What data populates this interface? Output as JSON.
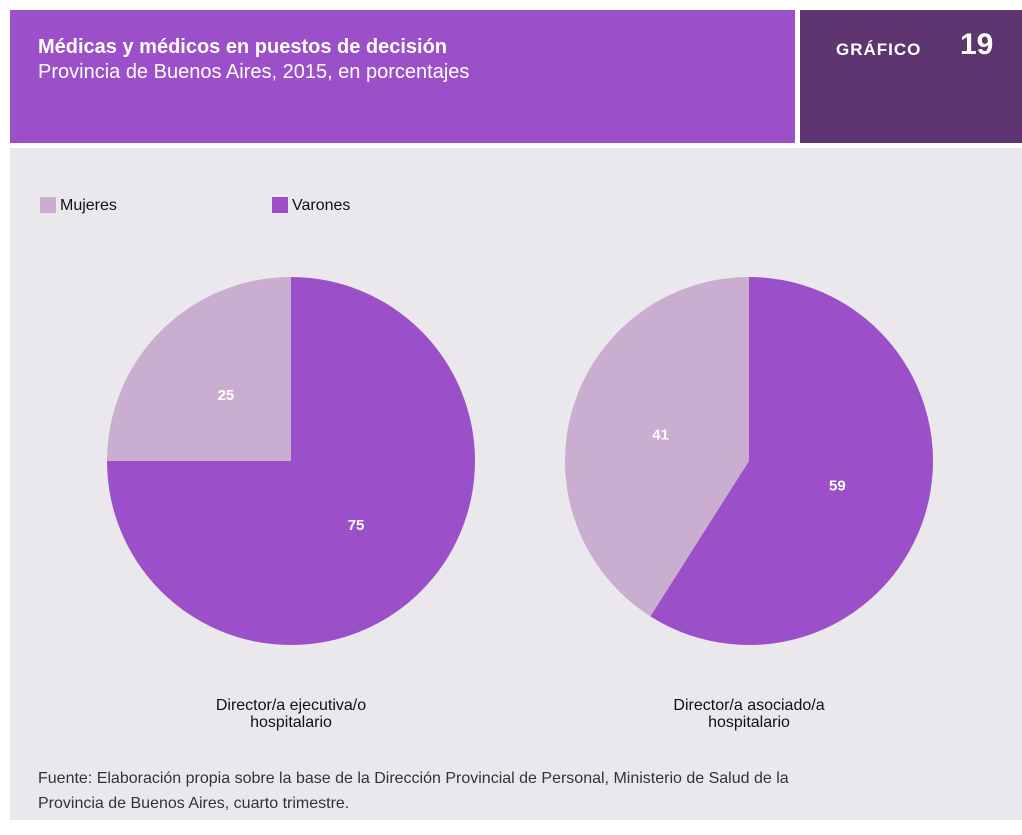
{
  "header": {
    "title": "Médicas y médicos en puestos de decisión",
    "subtitle": "Provincia de Buenos Aires, 2015, en porcentajes",
    "label": "GRÁFICO",
    "number": "19"
  },
  "chart_data": [
    {
      "type": "pie",
      "title": "Director/a ejecutiva/o hospitalario",
      "categories": [
        "Mujeres",
        "Varones"
      ],
      "values": [
        25,
        75
      ],
      "colors": [
        "#c9aecf",
        "#9b4fc8"
      ],
      "legend": "top-left"
    },
    {
      "type": "pie",
      "title": "Director/a asociado/a hospitalario",
      "categories": [
        "Mujeres",
        "Varones"
      ],
      "values": [
        41,
        59
      ],
      "colors": [
        "#c9aecf",
        "#9b4fc8"
      ]
    }
  ],
  "source": "Fuente: Elaboración propia sobre la base de la Dirección Provincial de Personal, Ministerio de Salud de la Provincia de Buenos Aires, cuarto trimestre."
}
